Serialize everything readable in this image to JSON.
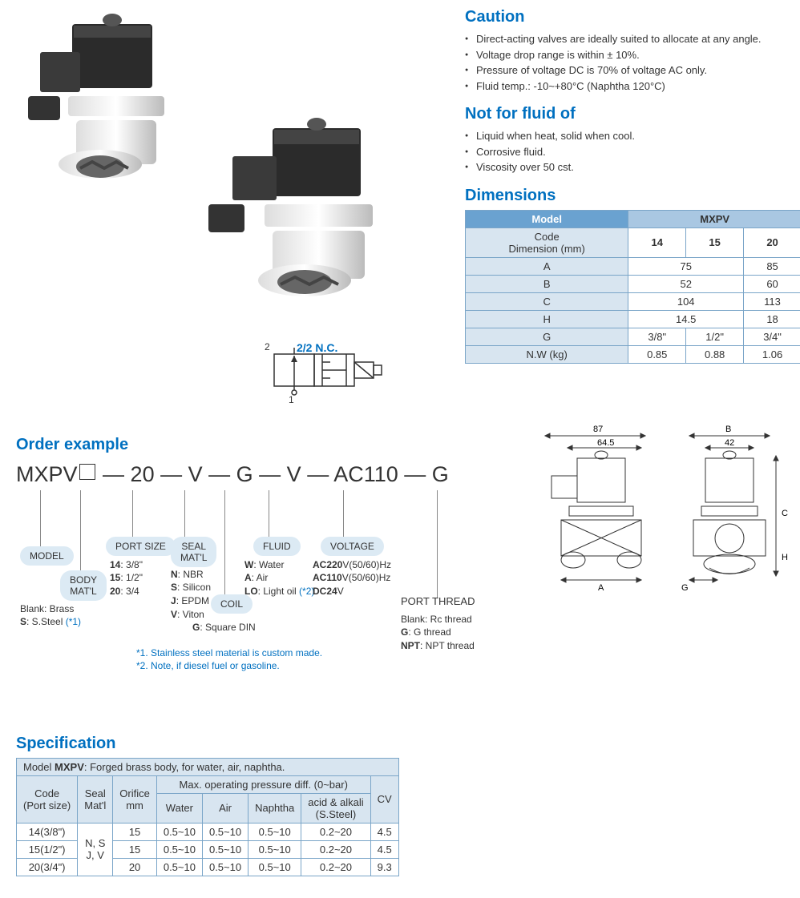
{
  "caution": {
    "title": "Caution",
    "items": [
      "Direct-acting valves are ideally suited to allocate at any angle.",
      "Voltage drop range is within ± 10%.",
      "Pressure of voltage DC is 70% of voltage AC only.",
      "Fluid temp.: -10~+80°C (Naphtha 120°C)"
    ]
  },
  "notfor": {
    "title": "Not for fluid of",
    "items": [
      "Liquid when heat, solid when cool.",
      "Corrosive fluid.",
      "Viscosity over 50 cst."
    ]
  },
  "symbol": {
    "port2": "2",
    "port1": "1",
    "type": "2/2 N.C."
  },
  "dimensions": {
    "title": "Dimensions",
    "model_label": "Model",
    "mxpv_label": "MXPV",
    "code_dim_label": "Code\nDimension (mm)",
    "cols": [
      "14",
      "15",
      "20"
    ],
    "rows": [
      {
        "h": "A",
        "cells": [
          {
            "v": "75",
            "span": 2
          },
          {
            "v": "85"
          }
        ]
      },
      {
        "h": "B",
        "cells": [
          {
            "v": "52",
            "span": 2
          },
          {
            "v": "60"
          }
        ]
      },
      {
        "h": "C",
        "cells": [
          {
            "v": "104",
            "span": 2
          },
          {
            "v": "113"
          }
        ]
      },
      {
        "h": "H",
        "cells": [
          {
            "v": "14.5",
            "span": 2
          },
          {
            "v": "18"
          }
        ]
      },
      {
        "h": "G",
        "cells": [
          {
            "v": "3/8\""
          },
          {
            "v": "1/2\""
          },
          {
            "v": "3/4\""
          }
        ]
      },
      {
        "h": "N.W (kg)",
        "cells": [
          {
            "v": "0.85"
          },
          {
            "v": "0.88"
          },
          {
            "v": "1.06"
          }
        ]
      }
    ]
  },
  "order": {
    "title": "Order example",
    "code_parts": [
      "MXPV",
      "□",
      "—",
      "20",
      "—",
      "V",
      "—",
      "G",
      "—",
      "V",
      "—",
      "AC110",
      "—",
      "G"
    ],
    "labels": {
      "model": "MODEL",
      "body": "BODY\nMAT'L",
      "port": "PORT SIZE",
      "seal": "SEAL\nMAT'L",
      "coil": "COIL",
      "fluid": "FLUID",
      "voltage": "VOLTAGE",
      "thread": "PORT THREAD"
    },
    "body_text": "Blank: Brass\nS: S.Steel (*1)",
    "port_text": "14: 3/8\"\n15: 1/2\"\n20: 3/4",
    "seal_text": "N: NBR\nS: Silicon\nJ: EPDM\nV: Viton",
    "coil_text": "G: Square DIN",
    "fluid_text": "W: Water\nA: Air\nLO: Light oil (*2)",
    "voltage_text": "AC220V(50/60)Hz\nAC110V(50/60)Hz\nDC24V",
    "thread_text": "Blank: Rc thread\nG: G thread\nNPT: NPT thread",
    "note1": "*1. Stainless steel material is custom made.",
    "note2": "*2. Note, if diesel fuel or gasoline."
  },
  "dim_draw": {
    "d87": "87",
    "d645": "64.5",
    "dA": "A",
    "dB": "B",
    "d42": "42",
    "dC": "C",
    "dH": "H",
    "dG": "G"
  },
  "spec": {
    "title": "Specification",
    "model_desc": "Model MXPV: Forged brass body, for water, air, naphtha.",
    "model_desc_prefix": "Model ",
    "model_desc_bold": "MXPV",
    "model_desc_suffix": ": Forged brass body, for water, air, naphtha.",
    "headers": {
      "code": "Code\n(Port size)",
      "seal": "Seal\nMat'l",
      "orifice": "Orifice\nmm",
      "maxop": "Max. operating pressure diff. (0~bar)",
      "water": "Water",
      "air": "Air",
      "naphtha": "Naphtha",
      "acid": "acid & alkali\n(S.Steel)",
      "cv": "CV"
    },
    "seal_val": "N, S\nJ, V",
    "rows": [
      {
        "code": "14(3/8\")",
        "orifice": "15",
        "w": "0.5~10",
        "a": "0.5~10",
        "n": "0.5~10",
        "ac": "0.2~20",
        "cv": "4.5"
      },
      {
        "code": "15(1/2\")",
        "orifice": "15",
        "w": "0.5~10",
        "a": "0.5~10",
        "n": "0.5~10",
        "ac": "0.2~20",
        "cv": "4.5"
      },
      {
        "code": "20(3/4\")",
        "orifice": "20",
        "w": "0.5~10",
        "a": "0.5~10",
        "n": "0.5~10",
        "ac": "0.2~20",
        "cv": "9.3"
      }
    ]
  }
}
